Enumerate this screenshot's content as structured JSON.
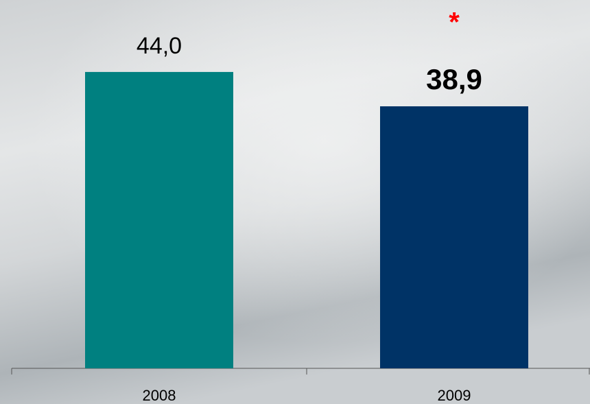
{
  "chart_data": {
    "type": "bar",
    "categories": [
      "2008",
      "2009"
    ],
    "values": [
      44.0,
      38.9
    ],
    "value_labels": [
      "44,0",
      "38,9"
    ],
    "colors": [
      "#008080",
      "#003366"
    ],
    "ylim": [
      0,
      50
    ],
    "annotations": [
      {
        "text": "*",
        "category": "2009",
        "color": "#ff0000"
      }
    ]
  }
}
